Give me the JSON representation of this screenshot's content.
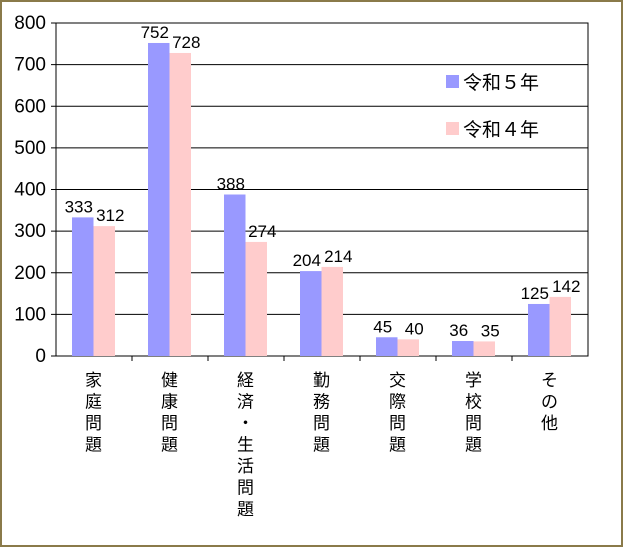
{
  "chart_data": {
    "type": "bar",
    "categories": [
      "家庭問題",
      "健康問題",
      "経済・生活問題",
      "勤務問題",
      "交際問題",
      "学校問題",
      "その他"
    ],
    "series": [
      {
        "name": "令和５年",
        "color": "#9999ff",
        "values": [
          333,
          752,
          388,
          204,
          45,
          36,
          125
        ]
      },
      {
        "name": "令和４年",
        "color": "#ffcccc",
        "values": [
          312,
          728,
          274,
          214,
          40,
          35,
          142
        ]
      }
    ],
    "y_ticks": [
      0,
      100,
      200,
      300,
      400,
      500,
      600,
      700,
      800
    ],
    "ylim": [
      0,
      800
    ],
    "grid": true,
    "legend_position": "top-right",
    "title": "",
    "xlabel": "",
    "ylabel": ""
  }
}
